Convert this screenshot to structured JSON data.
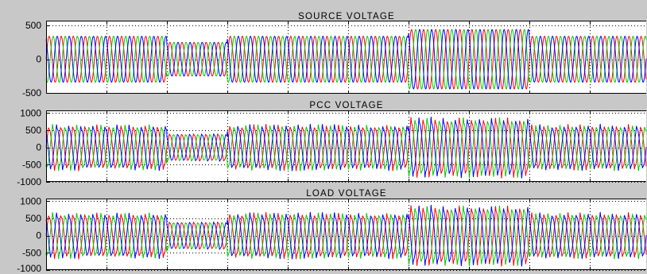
{
  "colors": {
    "figure_background": "#c8c8c8",
    "plot_background": "#ffffff",
    "grid": "#000000",
    "frame": "#000000"
  },
  "chart_data": [
    {
      "type": "line",
      "title": "SOURCE VOLTAGE",
      "ylim": [
        -510,
        570
      ],
      "yticks": [
        500,
        0,
        -500
      ],
      "grid": true,
      "cycles": 50,
      "xgrid_every_cycles": 5,
      "series": [
        {
          "color": "#ff0000",
          "phase_deg": 0
        },
        {
          "color": "#00cc00",
          "phase_deg": -120
        },
        {
          "color": "#0000ff",
          "phase_deg": 120
        }
      ],
      "segments": [
        {
          "from_cycle": 0,
          "to_cycle": 10,
          "amplitude": 340
        },
        {
          "from_cycle": 10,
          "to_cycle": 15,
          "amplitude": 250
        },
        {
          "from_cycle": 15,
          "to_cycle": 30,
          "amplitude": 340
        },
        {
          "from_cycle": 30,
          "to_cycle": 40,
          "amplitude": 440
        },
        {
          "from_cycle": 40,
          "to_cycle": 50,
          "amplitude": 340
        }
      ]
    },
    {
      "type": "line",
      "title": "PCC VOLTAGE",
      "ylim": [
        -1000,
        1080
      ],
      "yticks": [
        1000,
        500,
        0,
        -500,
        -1000
      ],
      "grid": true,
      "cycles": 50,
      "xgrid_every_cycles": 5,
      "series": [
        {
          "color": "#ff0000",
          "phase_deg": 0
        },
        {
          "color": "#00cc00",
          "phase_deg": -120
        },
        {
          "color": "#0000ff",
          "phase_deg": 120
        }
      ],
      "segments": [
        {
          "from_cycle": 0,
          "to_cycle": 10,
          "amplitude": 540,
          "spike_peak": 680
        },
        {
          "from_cycle": 10,
          "to_cycle": 15,
          "amplitude": 360,
          "spike_peak": 400
        },
        {
          "from_cycle": 15,
          "to_cycle": 30,
          "amplitude": 540,
          "spike_peak": 680
        },
        {
          "from_cycle": 30,
          "to_cycle": 40,
          "amplitude": 700,
          "spike_peak": 890
        },
        {
          "from_cycle": 40,
          "to_cycle": 50,
          "amplitude": 540,
          "spike_peak": 680
        }
      ]
    },
    {
      "type": "line",
      "title": "LOAD VOLTAGE",
      "ylim": [
        -1000,
        1080
      ],
      "yticks": [
        1000,
        500,
        0,
        -500,
        -1000
      ],
      "grid": true,
      "cycles": 50,
      "xgrid_every_cycles": 5,
      "series": [
        {
          "color": "#ff0000",
          "phase_deg": 0
        },
        {
          "color": "#00cc00",
          "phase_deg": -120
        },
        {
          "color": "#0000ff",
          "phase_deg": 120
        }
      ],
      "segments": [
        {
          "from_cycle": 0,
          "to_cycle": 10,
          "amplitude": 540,
          "spike_peak": 680
        },
        {
          "from_cycle": 10,
          "to_cycle": 15,
          "amplitude": 360,
          "spike_peak": 400
        },
        {
          "from_cycle": 15,
          "to_cycle": 30,
          "amplitude": 540,
          "spike_peak": 680
        },
        {
          "from_cycle": 30,
          "to_cycle": 40,
          "amplitude": 700,
          "spike_peak": 890
        },
        {
          "from_cycle": 40,
          "to_cycle": 50,
          "amplitude": 540,
          "spike_peak": 680
        }
      ]
    }
  ]
}
